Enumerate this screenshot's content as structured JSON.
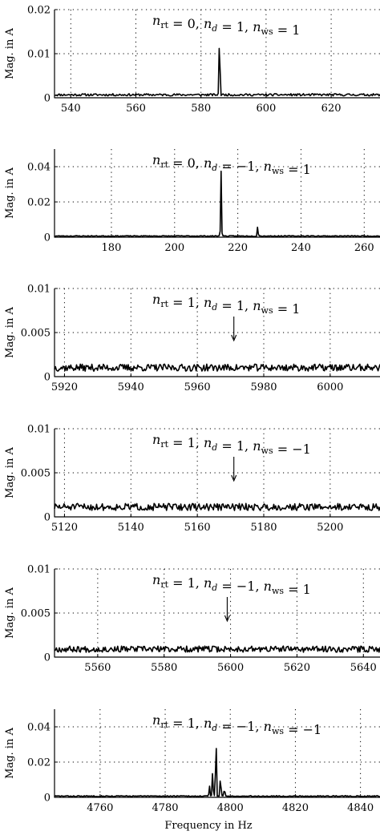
{
  "figure": {
    "xlabel": "Frequency in Hz"
  },
  "chart_data": [
    {
      "type": "line",
      "ylabel": "Mag. in A",
      "annotation": {
        "nrt": "0",
        "nd": "1",
        "nws": "1"
      },
      "xlim": [
        535,
        635
      ],
      "ylim": [
        0,
        0.02
      ],
      "xticks": [
        540,
        560,
        580,
        600,
        620
      ],
      "yticks": [
        0,
        0.01,
        0.02
      ],
      "xtick_labels": [
        "540",
        "560",
        "580",
        "600",
        "620"
      ],
      "ytick_labels": [
        "0",
        "0.01",
        "0.02"
      ],
      "grid": true,
      "arrow": false,
      "baseline": 0.0006,
      "noise": 0.0005,
      "seed": 11,
      "peaks": [
        [
          585.7,
          0.016
        ]
      ]
    },
    {
      "type": "line",
      "ylabel": "Mag. in A",
      "annotation": {
        "nrt": "0",
        "nd": "−1",
        "nws": "1"
      },
      "xlim": [
        162,
        265
      ],
      "ylim": [
        0,
        0.05
      ],
      "xticks": [
        180,
        200,
        220,
        240,
        260
      ],
      "yticks": [
        0,
        0.02,
        0.04
      ],
      "xtick_labels": [
        "180",
        "200",
        "220",
        "240",
        "260"
      ],
      "ytick_labels": [
        "0",
        "0.02",
        "0.04"
      ],
      "grid": true,
      "arrow": false,
      "baseline": 0.0006,
      "noise": 0.0005,
      "seed": 23,
      "peaks": [
        [
          214.7,
          0.037
        ],
        [
          226.3,
          0.006
        ]
      ]
    },
    {
      "type": "line",
      "ylabel": "Mag. in A",
      "annotation": {
        "nrt": "1",
        "nd": "1",
        "nws": "1"
      },
      "xlim": [
        5917,
        6015
      ],
      "ylim": [
        0,
        0.01
      ],
      "xticks": [
        5920,
        5940,
        5960,
        5980,
        6000
      ],
      "yticks": [
        0,
        0.005,
        0.01
      ],
      "xtick_labels": [
        "5920",
        "5940",
        "5960",
        "5980",
        "6000"
      ],
      "ytick_labels": [
        "0",
        "0.005",
        "0.01"
      ],
      "grid": true,
      "arrow": true,
      "arrow_x": 5971,
      "baseline": 0.0009,
      "noise": 0.0008,
      "seed": 37,
      "peaks": []
    },
    {
      "type": "line",
      "ylabel": "Mag. in A",
      "annotation": {
        "nrt": "1",
        "nd": "1",
        "nws": "−1"
      },
      "xlim": [
        5117,
        5215
      ],
      "ylim": [
        0,
        0.01
      ],
      "xticks": [
        5120,
        5140,
        5160,
        5180,
        5200
      ],
      "yticks": [
        0,
        0.005,
        0.01
      ],
      "xtick_labels": [
        "5120",
        "5140",
        "5160",
        "5180",
        "5200"
      ],
      "ytick_labels": [
        "0",
        "0.005",
        "0.01"
      ],
      "grid": true,
      "arrow": true,
      "arrow_x": 5171,
      "baseline": 0.001,
      "noise": 0.0008,
      "seed": 51,
      "peaks": []
    },
    {
      "type": "line",
      "ylabel": "Mag. in A",
      "annotation": {
        "nrt": "1",
        "nd": "−1",
        "nws": "1"
      },
      "xlim": [
        5547,
        5645
      ],
      "ylim": [
        0,
        0.01
      ],
      "xticks": [
        5560,
        5580,
        5600,
        5620,
        5640
      ],
      "yticks": [
        0,
        0.005,
        0.01
      ],
      "xtick_labels": [
        "5560",
        "5580",
        "5600",
        "5620",
        "5640"
      ],
      "ytick_labels": [
        "0",
        "0.005",
        "0.01"
      ],
      "grid": true,
      "arrow": true,
      "arrow_x": 5599,
      "baseline": 0.0008,
      "noise": 0.0007,
      "seed": 67,
      "peaks": []
    },
    {
      "type": "line",
      "ylabel": "Mag. in A",
      "annotation": {
        "nrt": "1",
        "nd": "−1",
        "nws": "−1"
      },
      "xlim": [
        4746,
        4846
      ],
      "ylim": [
        0,
        0.05
      ],
      "xticks": [
        4760,
        4780,
        4800,
        4820,
        4840
      ],
      "yticks": [
        0,
        0.02,
        0.04
      ],
      "xtick_labels": [
        "4760",
        "4780",
        "4800",
        "4820",
        "4840"
      ],
      "ytick_labels": [
        "0",
        "0.02",
        "0.04"
      ],
      "grid": true,
      "arrow": false,
      "baseline": 0.0006,
      "noise": 0.0006,
      "seed": 83,
      "peaks": [
        [
          4795.6,
          0.039
        ],
        [
          4794.6,
          0.015
        ],
        [
          4797.0,
          0.013
        ],
        [
          4793.6,
          0.006
        ],
        [
          4798.2,
          0.005
        ]
      ]
    }
  ]
}
